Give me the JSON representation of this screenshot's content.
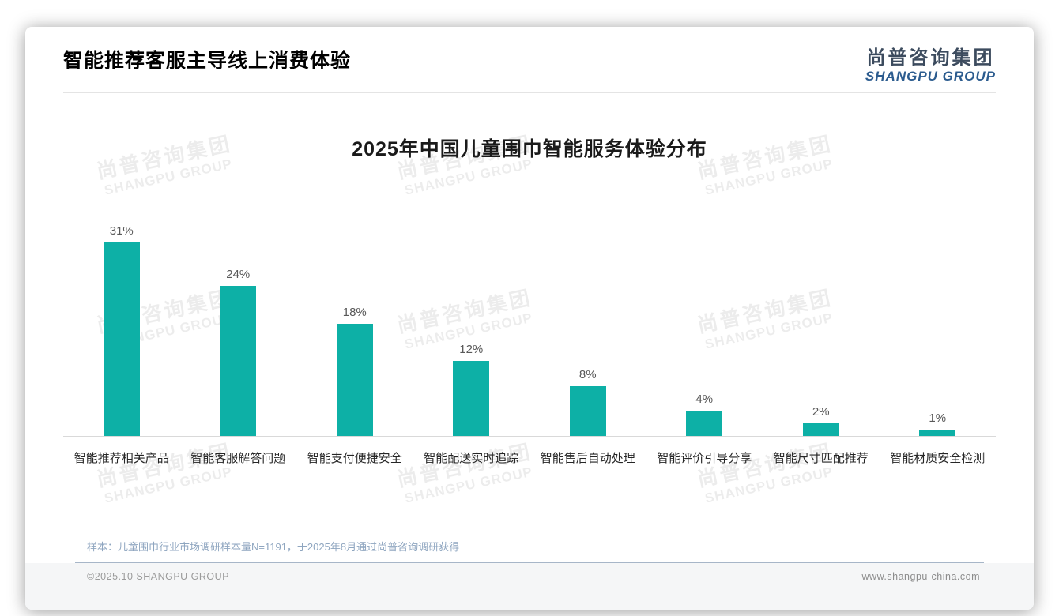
{
  "header": {
    "title": "智能推荐客服主导线上消费体验",
    "logo": {
      "name_cn": "尚普咨询集团",
      "name_en": "SHANGPU GROUP"
    }
  },
  "watermark": {
    "line1": "尚普咨询集团",
    "line2": "SHANGPU GROUP"
  },
  "chart_data": {
    "type": "bar",
    "title": "2025年中国儿童围巾智能服务体验分布",
    "categories": [
      "智能推荐相关产品",
      "智能客服解答问题",
      "智能支付便捷安全",
      "智能配送实时追踪",
      "智能售后自动处理",
      "智能评价引导分享",
      "智能尺寸匹配推荐",
      "智能材质安全检测"
    ],
    "values": [
      31,
      24,
      18,
      12,
      8,
      4,
      2,
      1
    ],
    "unit": "%",
    "value_labels": "above-bars",
    "xlabel": "",
    "ylabel": "",
    "ylim": [
      0,
      34
    ],
    "grid": false,
    "legend": "none",
    "bar_color": "#0DB0A6"
  },
  "note": "样本：儿童围巾行业市场调研样本量N=1191，于2025年8月通过尚普咨询调研获得",
  "footer": {
    "copyright": "©2025.10 SHANGPU GROUP",
    "website": "www.shangpu-china.com"
  }
}
